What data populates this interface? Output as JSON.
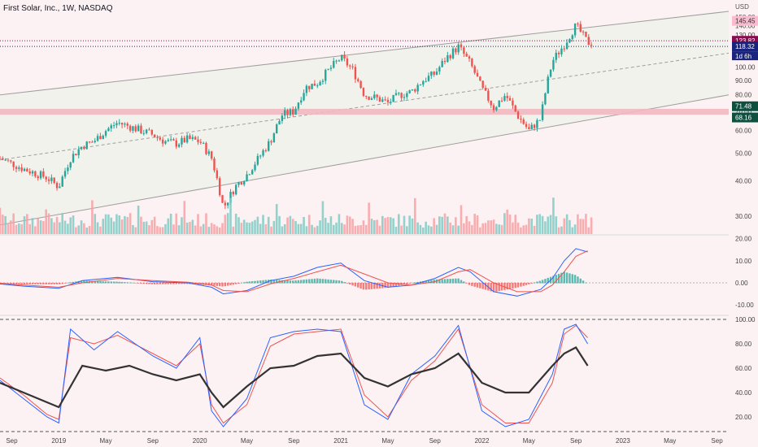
{
  "header": {
    "title": "First Solar, Inc., 1W, NASDAQ"
  },
  "colors": {
    "background": "#fdf2f3",
    "up": "#26a69a",
    "down": "#ef5350",
    "up_vol": "#80cbc4",
    "down_vol": "#f7a1a4",
    "channel": "#9e9e9e",
    "channel_fill": "#f1f2ec",
    "support_zone": "#f2b8c0",
    "macd": "#2962ff",
    "signal": "#ef5350",
    "stoch_k": "#2962ff",
    "stoch_d": "#ef5350",
    "rsi": "#333333",
    "last_price_tag": "#880e4f",
    "alert_tag": "#1a237e",
    "zone_tag": "#0e5040",
    "pink_tag": "#f8bbd0"
  },
  "price_axis": {
    "unit": "USD",
    "ticks": [
      "150.00",
      "140.00",
      "130.00",
      "110.00",
      "100.00",
      "90.00",
      "80.00",
      "70.00",
      "60.00",
      "50.00",
      "40.00",
      "30.00"
    ],
    "tags": {
      "high": "145.45",
      "last": "123.82",
      "alert": "118.32",
      "countdown": "1d 6h",
      "zone_top": "71.48",
      "zone_bottom": "68.16"
    }
  },
  "macd_axis": {
    "ticks": [
      "20.00",
      "10.00",
      "0.00",
      "-10.00"
    ]
  },
  "stoch_axis": {
    "ticks": [
      "100.00",
      "80.00",
      "60.00",
      "40.00",
      "20.00"
    ]
  },
  "time_axis": {
    "ticks": [
      "Sep",
      "2019",
      "May",
      "Sep",
      "2020",
      "May",
      "Sep",
      "2021",
      "May",
      "Sep",
      "2022",
      "May",
      "Sep",
      "2023",
      "May",
      "Sep"
    ]
  },
  "chart_data": [
    {
      "type": "candlestick",
      "title": "First Solar, Inc., 1W, NASDAQ",
      "interval": "1W",
      "y_scale": "log",
      "ylim": [
        26,
        157
      ],
      "x_start": "2018-08",
      "x_end": "2023-10",
      "close_path": [
        [
          "2018-08",
          48
        ],
        [
          "2018-10",
          44
        ],
        [
          "2018-12",
          41
        ],
        [
          "2019-01",
          38
        ],
        [
          "2019-02",
          48
        ],
        [
          "2019-03",
          53
        ],
        [
          "2019-04",
          55
        ],
        [
          "2019-05",
          60
        ],
        [
          "2019-06",
          64
        ],
        [
          "2019-07",
          62
        ],
        [
          "2019-08",
          60
        ],
        [
          "2019-09",
          58
        ],
        [
          "2019-10",
          55
        ],
        [
          "2019-11",
          54
        ],
        [
          "2019-12",
          56
        ],
        [
          "2020-01",
          55
        ],
        [
          "2020-02",
          48
        ],
        [
          "2020-03",
          32
        ],
        [
          "2020-04",
          38
        ],
        [
          "2020-05",
          42
        ],
        [
          "2020-06",
          48
        ],
        [
          "2020-07",
          55
        ],
        [
          "2020-08",
          68
        ],
        [
          "2020-09",
          70
        ],
        [
          "2020-10",
          85
        ],
        [
          "2020-11",
          88
        ],
        [
          "2020-12",
          98
        ],
        [
          "2021-01",
          108
        ],
        [
          "2021-02",
          98
        ],
        [
          "2021-03",
          80
        ],
        [
          "2021-04",
          78
        ],
        [
          "2021-05",
          75
        ],
        [
          "2021-06",
          80
        ],
        [
          "2021-07",
          82
        ],
        [
          "2021-08",
          90
        ],
        [
          "2021-09",
          95
        ],
        [
          "2021-10",
          108
        ],
        [
          "2021-11",
          118
        ],
        [
          "2021-12",
          103
        ],
        [
          "2022-01",
          84
        ],
        [
          "2022-02",
          72
        ],
        [
          "2022-03",
          80
        ],
        [
          "2022-04",
          68
        ],
        [
          "2022-05",
          60
        ],
        [
          "2022-06",
          66
        ],
        [
          "2022-07",
          105
        ],
        [
          "2022-08",
          120
        ],
        [
          "2022-09",
          140
        ],
        [
          "2022-10",
          122
        ]
      ],
      "high": 145.45,
      "last_close": 123.82,
      "alert_level": 118.32,
      "support_zone": [
        68.16,
        71.48
      ],
      "channel": {
        "upper": [
          [
            "2018-08",
            80
          ],
          [
            "2023-10",
            157
          ]
        ],
        "lower": [
          [
            "2018-08",
            28
          ],
          [
            "2023-10",
            80
          ]
        ]
      },
      "volume_type": "histogram"
    },
    {
      "type": "macd",
      "ylim": [
        -14,
        21
      ],
      "macd_path": [
        [
          "2018-08",
          -0.5
        ],
        [
          "2018-10",
          -1.5
        ],
        [
          "2019-01",
          -2.5
        ],
        [
          "2019-03",
          1
        ],
        [
          "2019-06",
          2.5
        ],
        [
          "2019-09",
          0.5
        ],
        [
          "2019-12",
          0
        ],
        [
          "2020-02",
          -2
        ],
        [
          "2020-03",
          -5
        ],
        [
          "2020-05",
          -3.5
        ],
        [
          "2020-07",
          1
        ],
        [
          "2020-09",
          3
        ],
        [
          "2020-11",
          7
        ],
        [
          "2021-01",
          9
        ],
        [
          "2021-03",
          1
        ],
        [
          "2021-05",
          -2
        ],
        [
          "2021-07",
          -1
        ],
        [
          "2021-09",
          2
        ],
        [
          "2021-11",
          7
        ],
        [
          "2021-12",
          5
        ],
        [
          "2022-02",
          -4
        ],
        [
          "2022-04",
          -6
        ],
        [
          "2022-06",
          -3
        ],
        [
          "2022-07",
          2
        ],
        [
          "2022-08",
          10
        ],
        [
          "2022-09",
          15.5
        ],
        [
          "2022-10",
          14
        ]
      ],
      "signal_path": [
        [
          "2018-08",
          -0.3
        ],
        [
          "2018-10",
          -1
        ],
        [
          "2019-01",
          -2
        ],
        [
          "2019-03",
          0
        ],
        [
          "2019-06",
          2
        ],
        [
          "2019-09",
          1
        ],
        [
          "2019-12",
          0.3
        ],
        [
          "2020-02",
          -1
        ],
        [
          "2020-03",
          -3.5
        ],
        [
          "2020-05",
          -4
        ],
        [
          "2020-07",
          -0.5
        ],
        [
          "2020-09",
          2
        ],
        [
          "2020-11",
          5
        ],
        [
          "2021-01",
          8
        ],
        [
          "2021-03",
          4
        ],
        [
          "2021-05",
          0
        ],
        [
          "2021-07",
          -1
        ],
        [
          "2021-09",
          0.5
        ],
        [
          "2021-11",
          5
        ],
        [
          "2021-12",
          6
        ],
        [
          "2022-02",
          0
        ],
        [
          "2022-04",
          -4
        ],
        [
          "2022-06",
          -4
        ],
        [
          "2022-07",
          -1
        ],
        [
          "2022-08",
          5
        ],
        [
          "2022-09",
          12
        ],
        [
          "2022-10",
          14.5
        ]
      ]
    },
    {
      "type": "line",
      "ylim": [
        8,
        102
      ],
      "bands": [
        100,
        8
      ],
      "series": [
        {
          "values_path": [
            [
              "2018-08",
              48
            ],
            [
              "2018-10",
              40
            ],
            [
              "2018-12",
              32
            ],
            [
              "2019-01",
              28
            ],
            [
              "2019-03",
              62
            ],
            [
              "2019-05",
              58
            ],
            [
              "2019-07",
              62
            ],
            [
              "2019-09",
              55
            ],
            [
              "2019-11",
              50
            ],
            [
              "2020-01",
              55
            ],
            [
              "2020-02",
              40
            ],
            [
              "2020-03",
              28
            ],
            [
              "2020-05",
              45
            ],
            [
              "2020-07",
              60
            ],
            [
              "2020-09",
              62
            ],
            [
              "2020-11",
              70
            ],
            [
              "2021-01",
              72
            ],
            [
              "2021-03",
              52
            ],
            [
              "2021-05",
              45
            ],
            [
              "2021-07",
              55
            ],
            [
              "2021-09",
              60
            ],
            [
              "2021-11",
              72
            ],
            [
              "2022-01",
              48
            ],
            [
              "2022-03",
              40
            ],
            [
              "2022-05",
              40
            ],
            [
              "2022-07",
              62
            ],
            [
              "2022-08",
              72
            ],
            [
              "2022-09",
              77
            ],
            [
              "2022-10",
              62
            ]
          ]
        },
        {
          "values_path": [
            [
              "2018-08",
              50
            ],
            [
              "2018-10",
              35
            ],
            [
              "2018-12",
              20
            ],
            [
              "2019-01",
              15
            ],
            [
              "2019-02",
              92
            ],
            [
              "2019-04",
              75
            ],
            [
              "2019-06",
              90
            ],
            [
              "2019-09",
              70
            ],
            [
              "2019-11",
              60
            ],
            [
              "2020-01",
              85
            ],
            [
              "2020-02",
              25
            ],
            [
              "2020-03",
              12
            ],
            [
              "2020-05",
              35
            ],
            [
              "2020-07",
              85
            ],
            [
              "2020-09",
              90
            ],
            [
              "2020-11",
              92
            ],
            [
              "2021-01",
              90
            ],
            [
              "2021-03",
              30
            ],
            [
              "2021-05",
              18
            ],
            [
              "2021-07",
              55
            ],
            [
              "2021-09",
              70
            ],
            [
              "2021-11",
              95
            ],
            [
              "2022-01",
              25
            ],
            [
              "2022-03",
              12
            ],
            [
              "2022-05",
              18
            ],
            [
              "2022-07",
              55
            ],
            [
              "2022-08",
              92
            ],
            [
              "2022-09",
              96
            ],
            [
              "2022-10",
              80
            ]
          ]
        },
        {
          "values_path": [
            [
              "2018-08",
              52
            ],
            [
              "2018-10",
              38
            ],
            [
              "2018-12",
              22
            ],
            [
              "2019-01",
              18
            ],
            [
              "2019-02",
              85
            ],
            [
              "2019-04",
              80
            ],
            [
              "2019-06",
              87
            ],
            [
              "2019-09",
              72
            ],
            [
              "2019-11",
              62
            ],
            [
              "2020-01",
              80
            ],
            [
              "2020-02",
              30
            ],
            [
              "2020-03",
              15
            ],
            [
              "2020-05",
              30
            ],
            [
              "2020-07",
              78
            ],
            [
              "2020-09",
              88
            ],
            [
              "2020-11",
              90
            ],
            [
              "2021-01",
              92
            ],
            [
              "2021-03",
              38
            ],
            [
              "2021-05",
              20
            ],
            [
              "2021-07",
              50
            ],
            [
              "2021-09",
              66
            ],
            [
              "2021-11",
              92
            ],
            [
              "2022-01",
              30
            ],
            [
              "2022-03",
              15
            ],
            [
              "2022-05",
              15
            ],
            [
              "2022-07",
              48
            ],
            [
              "2022-08",
              88
            ],
            [
              "2022-09",
              95
            ],
            [
              "2022-10",
              85
            ]
          ]
        }
      ]
    }
  ]
}
